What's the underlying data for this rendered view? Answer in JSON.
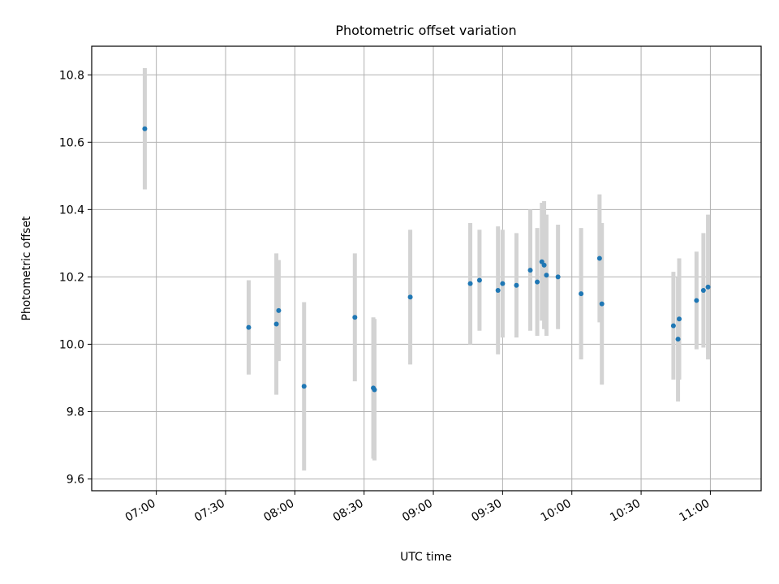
{
  "chart_data": {
    "type": "scatter",
    "title": "Photometric offset variation",
    "xlabel": "UTC time",
    "ylabel": "Photometric offset",
    "xlim": [
      "06:32",
      "11:22"
    ],
    "ylim": [
      9.565,
      10.885
    ],
    "x_ticks": [
      "07:00",
      "07:30",
      "08:00",
      "08:30",
      "09:00",
      "09:30",
      "10:00",
      "10:30",
      "11:00"
    ],
    "y_ticks": [
      "9.6",
      "9.8",
      "10.0",
      "10.2",
      "10.4",
      "10.6",
      "10.8"
    ],
    "grid": true,
    "legend": "none",
    "colors": {
      "point": "#1f77b4",
      "error_bar": "#d3d3d3",
      "grid": "#b0b0b0",
      "axes": "#000000"
    },
    "series": [
      {
        "points": [
          {
            "t": "06:55",
            "y": 10.64,
            "err": 0.18
          },
          {
            "t": "07:40",
            "y": 10.05,
            "err": 0.14
          },
          {
            "t": "07:52",
            "y": 10.06,
            "err": 0.21
          },
          {
            "t": "07:53",
            "y": 10.1,
            "err": 0.15
          },
          {
            "t": "08:04",
            "y": 9.875,
            "err": 0.25
          },
          {
            "t": "08:26",
            "y": 10.08,
            "err": 0.19
          },
          {
            "t": "08:34",
            "y": 9.87,
            "err": 0.21
          },
          {
            "t": "08:34.5",
            "y": 9.865,
            "err": 0.21
          },
          {
            "t": "08:50",
            "y": 10.14,
            "err": 0.2
          },
          {
            "t": "09:16",
            "y": 10.18,
            "err": 0.18
          },
          {
            "t": "09:20",
            "y": 10.19,
            "err": 0.15
          },
          {
            "t": "09:28",
            "y": 10.16,
            "err": 0.19
          },
          {
            "t": "09:30",
            "y": 10.18,
            "err": 0.16
          },
          {
            "t": "09:36",
            "y": 10.175,
            "err": 0.155
          },
          {
            "t": "09:42",
            "y": 10.22,
            "err": 0.18
          },
          {
            "t": "09:45",
            "y": 10.185,
            "err": 0.16
          },
          {
            "t": "09:47",
            "y": 10.245,
            "err": 0.175
          },
          {
            "t": "09:48",
            "y": 10.235,
            "err": 0.19
          },
          {
            "t": "09:49",
            "y": 10.205,
            "err": 0.18
          },
          {
            "t": "09:54",
            "y": 10.2,
            "err": 0.155
          },
          {
            "t": "10:04",
            "y": 10.15,
            "err": 0.195
          },
          {
            "t": "10:12",
            "y": 10.255,
            "err": 0.19
          },
          {
            "t": "10:13",
            "y": 10.12,
            "err": 0.24
          },
          {
            "t": "10:44",
            "y": 10.055,
            "err": 0.16
          },
          {
            "t": "10:46",
            "y": 10.015,
            "err": 0.185
          },
          {
            "t": "10:46.5",
            "y": 10.075,
            "err": 0.18
          },
          {
            "t": "10:54",
            "y": 10.13,
            "err": 0.145
          },
          {
            "t": "10:57",
            "y": 10.16,
            "err": 0.17
          },
          {
            "t": "10:59",
            "y": 10.17,
            "err": 0.215
          }
        ]
      }
    ]
  }
}
